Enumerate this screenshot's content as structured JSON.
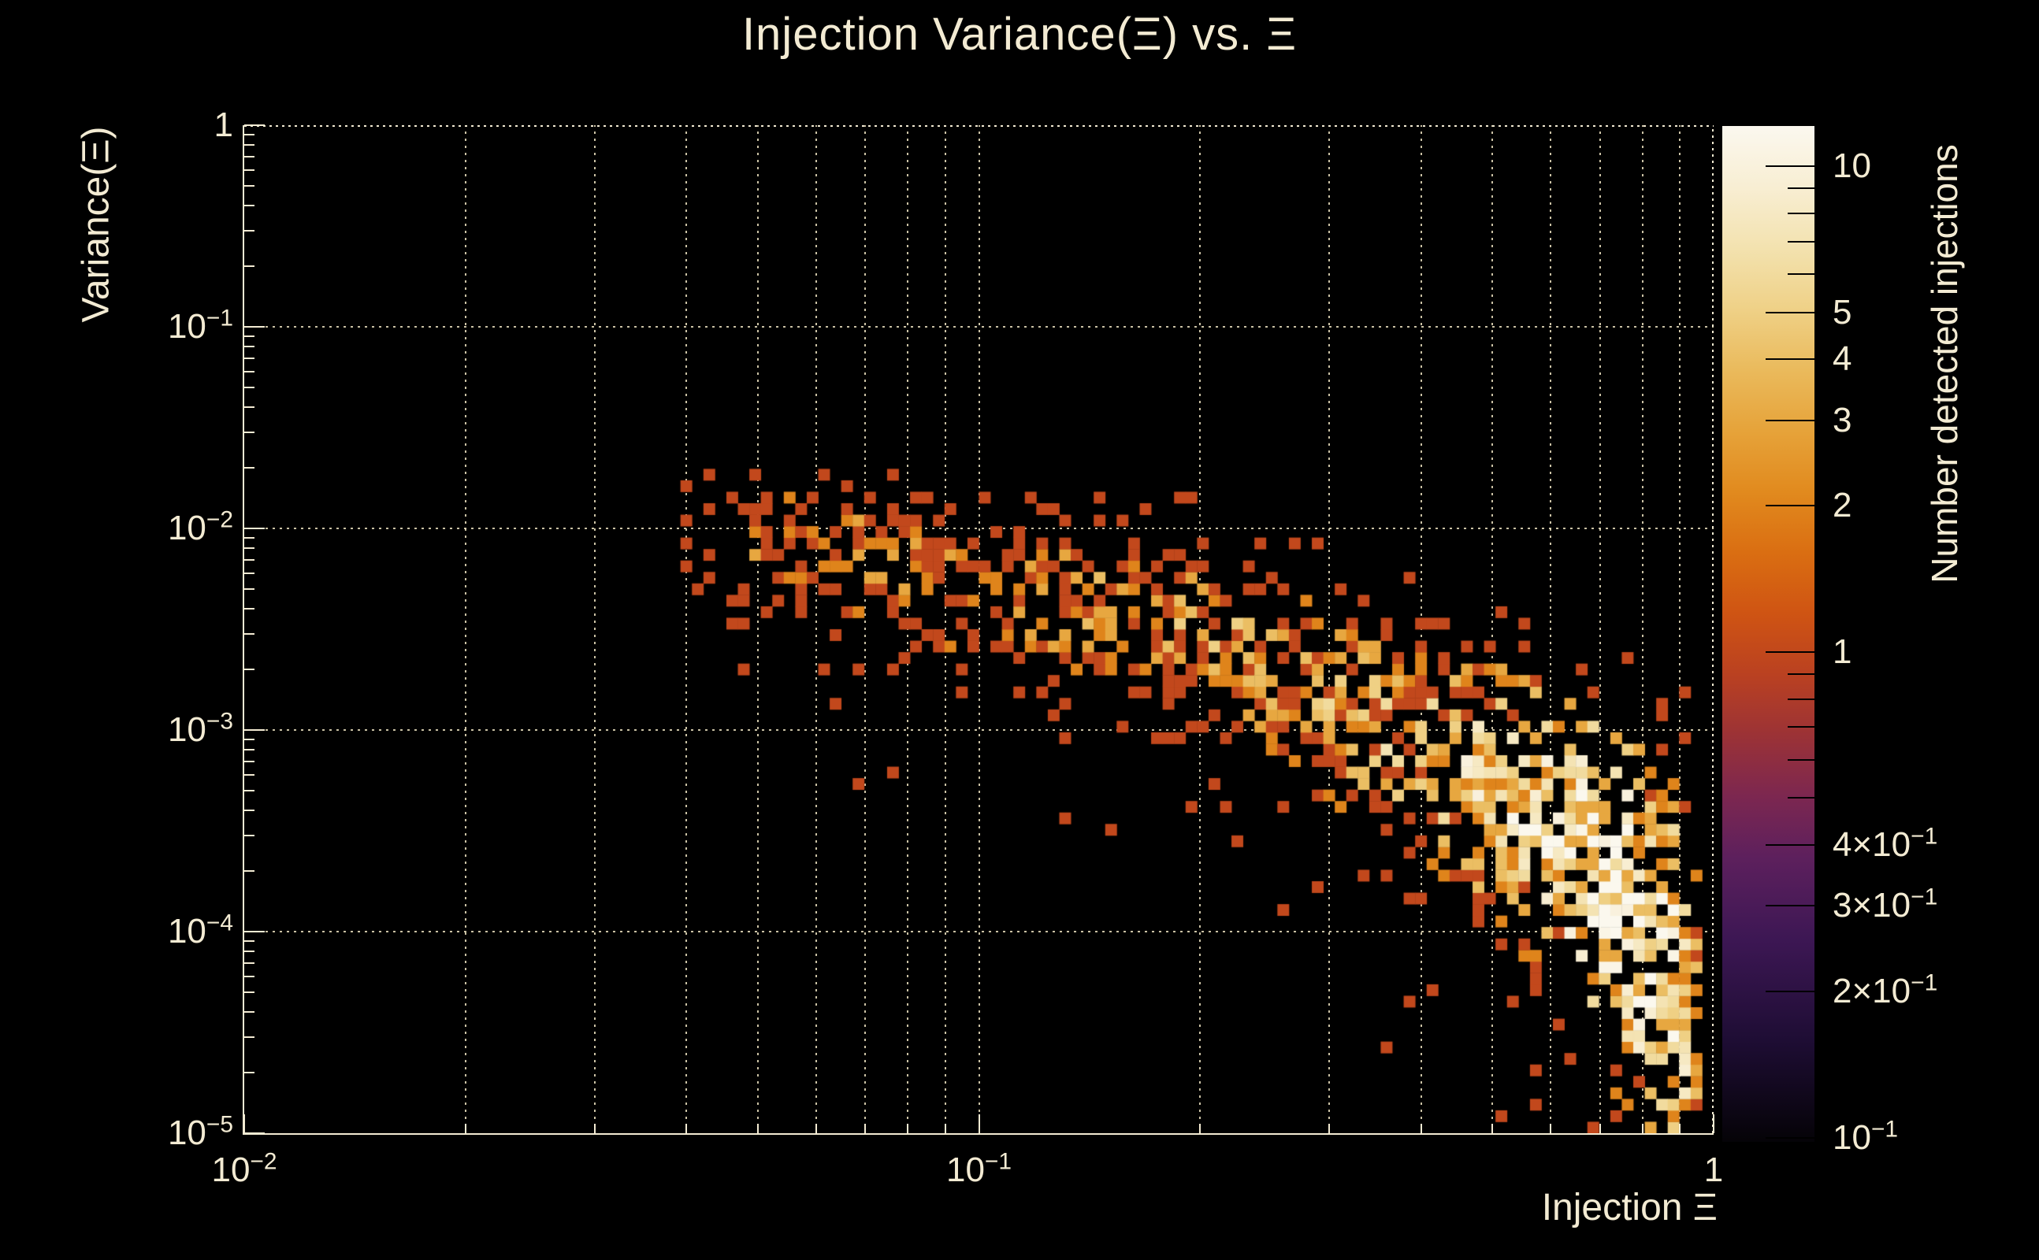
{
  "colors": {
    "background": "#000000",
    "text": "#f3ebd3",
    "grid": "#efe4c2",
    "axis": "#f3ebd3",
    "colorbar_tick": "#000000"
  },
  "chart_data": {
    "type": "heatmap",
    "title": "Injection Variance(Ξ) vs. Ξ",
    "xlabel": "Injection Ξ",
    "ylabel": "Variance(Ξ)",
    "zlabel": "Number detected injections",
    "xscale": "log",
    "yscale": "log",
    "zscale": "log",
    "grid": true,
    "xlim": [
      0.01,
      1
    ],
    "ylim": [
      1e-05,
      1
    ],
    "zlim": [
      0.098,
      12.1
    ],
    "x_ticks": [
      {
        "v": 0.01,
        "m": "10",
        "e": "−2"
      },
      {
        "v": 0.1,
        "m": "10",
        "e": "−1"
      },
      {
        "v": 1,
        "m": "1"
      }
    ],
    "y_ticks": [
      {
        "v": 1,
        "m": "1"
      },
      {
        "v": 0.1,
        "m": "10",
        "e": "−1"
      },
      {
        "v": 0.01,
        "m": "10",
        "e": "−2"
      },
      {
        "v": 0.001,
        "m": "10",
        "e": "−3"
      },
      {
        "v": 0.0001,
        "m": "10",
        "e": "−4"
      },
      {
        "v": 1e-05,
        "m": "10",
        "e": "−5"
      }
    ],
    "z_ticks": [
      {
        "v": 10,
        "m": "10"
      },
      {
        "v": 5,
        "m": "5"
      },
      {
        "v": 4,
        "m": "4"
      },
      {
        "v": 3,
        "m": "3"
      },
      {
        "v": 2,
        "m": "2"
      },
      {
        "v": 1,
        "m": "1"
      },
      {
        "v": 0.4,
        "m": "4×10",
        "e": "−1"
      },
      {
        "v": 0.3,
        "m": "3×10",
        "e": "−1"
      },
      {
        "v": 0.2,
        "m": "2×10",
        "e": "−1"
      },
      {
        "v": 0.1,
        "m": "10",
        "e": "−1"
      }
    ],
    "z_minor_ticks": [
      9,
      8,
      7,
      6,
      0.9,
      0.8,
      0.7,
      0.6,
      0.5
    ],
    "x_grid_values": [
      0.02,
      0.03,
      0.04,
      0.05,
      0.06,
      0.07,
      0.08,
      0.09,
      0.1,
      0.2,
      0.3,
      0.4,
      0.5,
      0.6,
      0.7,
      0.8,
      0.9
    ],
    "y_grid_values": [
      0.1,
      0.01,
      0.001,
      0.0001
    ],
    "x_minor_tick_values": [
      0.02,
      0.03,
      0.04,
      0.05,
      0.06,
      0.07,
      0.08,
      0.09,
      0.2,
      0.3,
      0.4,
      0.5,
      0.6,
      0.7,
      0.8,
      0.9
    ],
    "palette_stops": [
      [
        0.0,
        "#050307"
      ],
      [
        0.1,
        "#1e0d34"
      ],
      [
        0.2,
        "#3d1754"
      ],
      [
        0.28,
        "#5d205d"
      ],
      [
        0.34,
        "#7c2750"
      ],
      [
        0.4,
        "#9b3236"
      ],
      [
        0.46,
        "#ba4121"
      ],
      [
        0.52,
        "#cf5413"
      ],
      [
        0.58,
        "#da6e12"
      ],
      [
        0.64,
        "#e18a1e"
      ],
      [
        0.7,
        "#e6a33a"
      ],
      [
        0.76,
        "#eaba5c"
      ],
      [
        0.82,
        "#efd187"
      ],
      [
        0.88,
        "#f3e2af"
      ],
      [
        0.94,
        "#f8eed3"
      ],
      [
        1.0,
        "#fbf8ef"
      ]
    ],
    "heatmap_model": {
      "seed": 421,
      "x_bins": 128,
      "y_bins": 88,
      "u_min": -1.4,
      "u_max": -0.012,
      "v_max": -1.7,
      "ridge": [
        [
          -1.4,
          -2.03
        ],
        [
          -1.2,
          -2.12
        ],
        [
          -1.0,
          -2.25
        ],
        [
          -0.85,
          -2.4
        ],
        [
          -0.7,
          -2.55
        ],
        [
          -0.55,
          -2.8
        ],
        [
          -0.45,
          -3.0
        ],
        [
          -0.35,
          -3.2
        ],
        [
          -0.25,
          -3.45
        ],
        [
          -0.175,
          -3.65
        ],
        [
          -0.12,
          -3.85
        ],
        [
          -0.07,
          -4.1
        ],
        [
          -0.03,
          -4.4
        ],
        [
          -0.012,
          -4.65
        ]
      ],
      "sigma": [
        [
          -1.4,
          0.26
        ],
        [
          -1.0,
          0.3
        ],
        [
          -0.6,
          0.32
        ],
        [
          -0.3,
          0.38
        ],
        [
          -0.15,
          0.45
        ],
        [
          -0.05,
          0.55
        ],
        [
          -0.012,
          0.6
        ]
      ],
      "amp": [
        [
          -1.4,
          1.3
        ],
        [
          -1.2,
          1.6
        ],
        [
          -1.0,
          2.0
        ],
        [
          -0.8,
          2.2
        ],
        [
          -0.6,
          2.8
        ],
        [
          -0.45,
          3.6
        ],
        [
          -0.35,
          5
        ],
        [
          -0.25,
          7
        ],
        [
          -0.17,
          10
        ],
        [
          -0.12,
          11
        ],
        [
          -0.07,
          9
        ],
        [
          -0.03,
          5
        ],
        [
          -0.012,
          2.5
        ]
      ],
      "density": [
        [
          -1.4,
          0.4
        ],
        [
          -1.1,
          0.5
        ],
        [
          -0.8,
          0.55
        ],
        [
          -0.5,
          0.65
        ],
        [
          -0.3,
          0.8
        ],
        [
          -0.15,
          0.85
        ],
        [
          -0.07,
          0.8
        ],
        [
          -0.012,
          0.5
        ]
      ],
      "outlier_below": 0.012,
      "outlier_above": 0.006,
      "tail_p": 0.09
    }
  }
}
